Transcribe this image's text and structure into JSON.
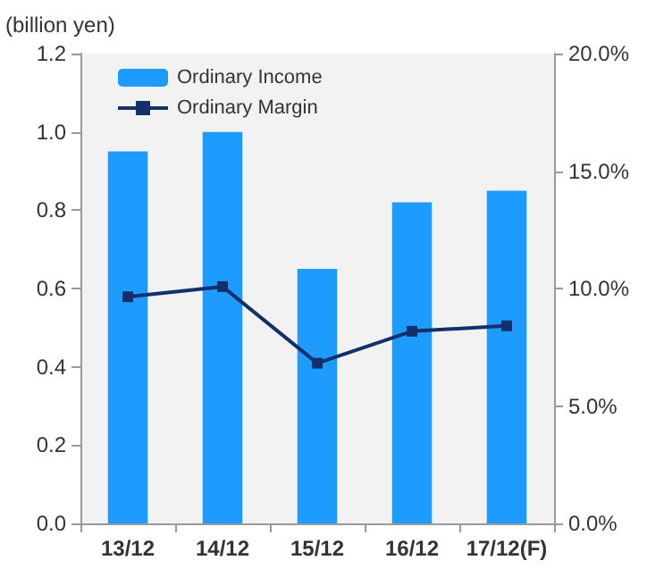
{
  "chart_data": {
    "type": "bar",
    "ylabel": "(billion yen)",
    "categories": [
      "13/12",
      "14/12",
      "15/12",
      "16/12",
      "17/12(F)"
    ],
    "series": [
      {
        "name": "Ordinary Income",
        "color": "#1e9bff",
        "values": [
          0.95,
          1.0,
          0.65,
          0.82,
          0.85
        ]
      },
      {
        "name": "Ordinary Margin",
        "type": "line",
        "axis": "y2",
        "color": "#13306b",
        "marker": "square",
        "values": [
          9.65,
          10.08,
          6.82,
          8.18,
          8.41
        ]
      }
    ],
    "ylim": [
      0,
      1.2
    ],
    "yticks": [
      {
        "value": 0,
        "label": "0.0"
      },
      0.2,
      0.4,
      0.6,
      0.8,
      {
        "value": 1,
        "label": "1.0"
      },
      1.2
    ],
    "y2lim": [
      0,
      20
    ],
    "y2ticks": [
      {
        "value": 0,
        "label": "0.0%"
      },
      {
        "value": 5,
        "label": "5.0%"
      },
      {
        "value": 10,
        "label": "10.0%"
      },
      {
        "value": 15,
        "label": "15.0%"
      },
      {
        "value": 20,
        "label": "20.0%"
      }
    ],
    "grid": false,
    "legend": "top left"
  }
}
